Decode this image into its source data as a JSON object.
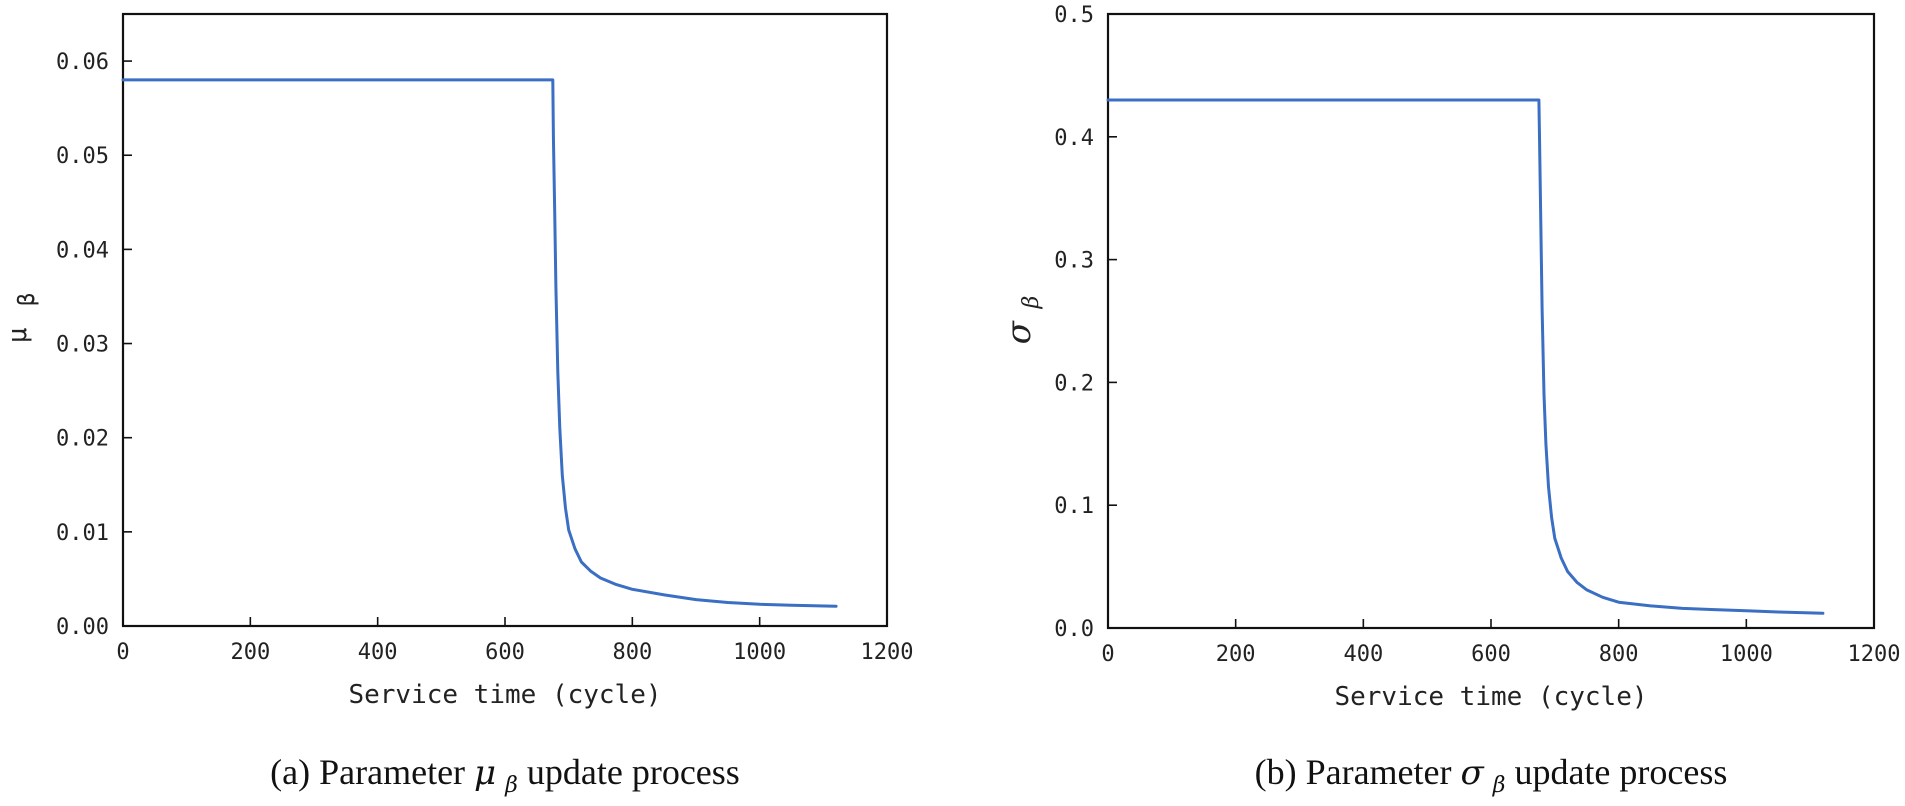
{
  "chart_data": [
    {
      "type": "line",
      "panel": "a",
      "caption_prefix": "(a)  Parameter ",
      "caption_symbol": "μ",
      "caption_subscript": "β",
      "caption_suffix": " update process",
      "xlabel": "Service time (cycle)",
      "ylabel_symbol": "μ",
      "ylabel_subscript": "β",
      "xlim": [
        0,
        1200
      ],
      "ylim": [
        0,
        0.065
      ],
      "xticks": [
        0,
        200,
        400,
        600,
        800,
        1000,
        1200
      ],
      "xtick_labels": [
        "0",
        "200",
        "400",
        "600",
        "800",
        "1000",
        "1200"
      ],
      "yticks": [
        0,
        0.01,
        0.02,
        0.03,
        0.04,
        0.05,
        0.06
      ],
      "ytick_labels": [
        "0.00",
        "0.01",
        "0.02",
        "0.03",
        "0.04",
        "0.05",
        "0.06"
      ],
      "line_color": "#3a6fc4",
      "series": [
        {
          "name": "mu_beta",
          "x": [
            0,
            675,
            676,
            678,
            680,
            683,
            686,
            690,
            695,
            700,
            710,
            720,
            735,
            750,
            775,
            800,
            850,
            900,
            950,
            1000,
            1050,
            1120
          ],
          "y": [
            0.058,
            0.058,
            0.052,
            0.044,
            0.036,
            0.027,
            0.021,
            0.016,
            0.0125,
            0.0102,
            0.0082,
            0.0068,
            0.0058,
            0.0051,
            0.0044,
            0.0039,
            0.0033,
            0.0028,
            0.0025,
            0.0023,
            0.0022,
            0.0021
          ]
        }
      ]
    },
    {
      "type": "line",
      "panel": "b",
      "caption_prefix": "(b) Parameter ",
      "caption_symbol": "σ",
      "caption_subscript": "β",
      "caption_suffix": "  update process",
      "xlabel": "Service time (cycle)",
      "ylabel_symbol": "σ",
      "ylabel_subscript": "β",
      "xlim": [
        0,
        1200
      ],
      "ylim": [
        0,
        0.5
      ],
      "xticks": [
        0,
        200,
        400,
        600,
        800,
        1000,
        1200
      ],
      "xtick_labels": [
        "0",
        "200",
        "400",
        "600",
        "800",
        "1000",
        "1200"
      ],
      "yticks": [
        0,
        0.1,
        0.2,
        0.3,
        0.4,
        0.5
      ],
      "ytick_labels": [
        "0.0",
        "0.1",
        "0.2",
        "0.3",
        "0.4",
        "0.5"
      ],
      "line_color": "#3a6fc4",
      "series": [
        {
          "name": "sigma_beta",
          "x": [
            0,
            675,
            676,
            678,
            680,
            683,
            686,
            690,
            695,
            700,
            710,
            720,
            735,
            750,
            775,
            800,
            850,
            900,
            950,
            1000,
            1050,
            1120
          ],
          "y": [
            0.43,
            0.43,
            0.4,
            0.33,
            0.26,
            0.19,
            0.15,
            0.115,
            0.09,
            0.073,
            0.057,
            0.046,
            0.037,
            0.031,
            0.025,
            0.021,
            0.018,
            0.016,
            0.015,
            0.014,
            0.013,
            0.012
          ]
        }
      ]
    }
  ]
}
